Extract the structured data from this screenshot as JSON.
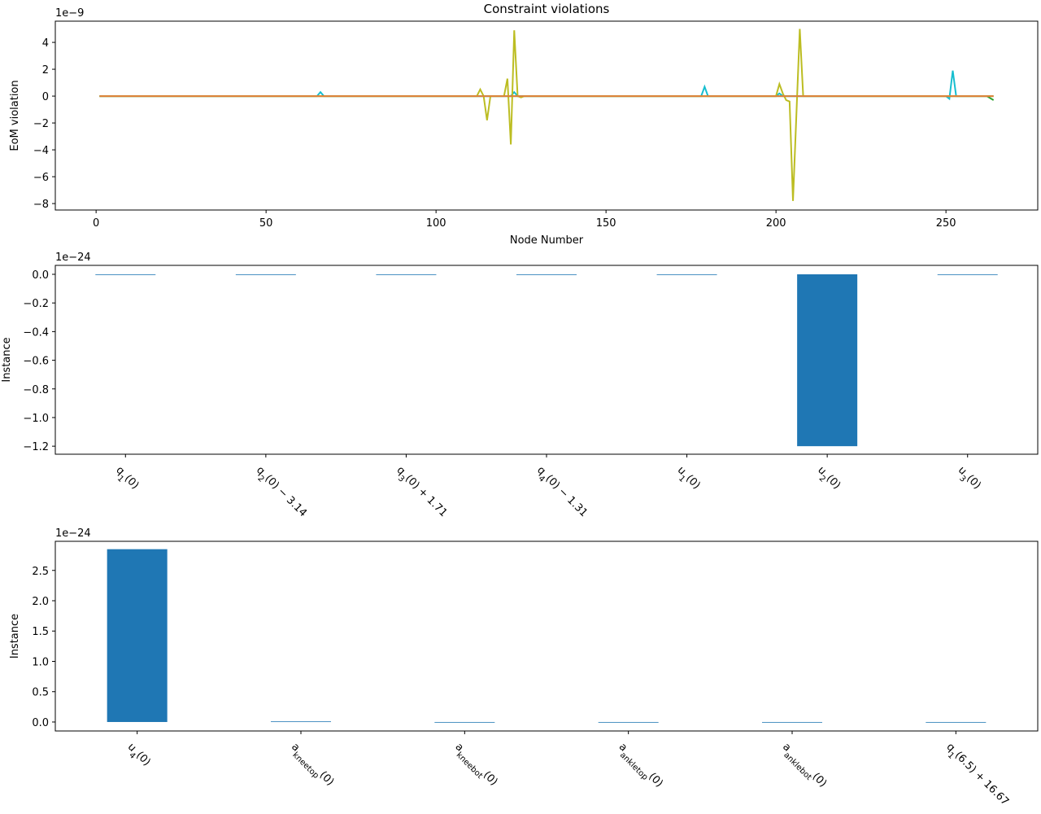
{
  "chart_data": [
    {
      "type": "line",
      "title": "Constraint violations",
      "xlabel": "Node Number",
      "ylabel": "EoM violation",
      "offset_text": "1e−9",
      "xlim": [
        -12,
        277
      ],
      "ylim": [
        -8.48,
        5.58
      ],
      "xticks": [
        0,
        50,
        100,
        150,
        200,
        250
      ],
      "yticks": [
        {
          "value": -8,
          "label": "−8"
        },
        {
          "value": -6,
          "label": "−6"
        },
        {
          "value": -4,
          "label": "−4"
        },
        {
          "value": -2,
          "label": "−2"
        },
        0,
        2,
        4
      ],
      "series": [
        {
          "color": "#2ca02c",
          "x": [
            1,
            262,
            264
          ],
          "values": [
            0,
            0,
            -0.3
          ]
        },
        {
          "color": "#17becf",
          "x": [
            1,
            65,
            66,
            67,
            122,
            123,
            124,
            178,
            179,
            180,
            200,
            201,
            202,
            250,
            251,
            252,
            253,
            264
          ],
          "values": [
            0,
            0,
            0.3,
            0,
            0,
            0.3,
            0,
            0,
            0.7,
            0,
            0,
            0.2,
            0,
            0,
            -0.2,
            1.9,
            0,
            0
          ]
        },
        {
          "color": "#bcbd22",
          "x": [
            1,
            112,
            113,
            114,
            115,
            116,
            120,
            121,
            122,
            123,
            124,
            125,
            126,
            200,
            201,
            202,
            203,
            204,
            205,
            206,
            207,
            208,
            264
          ],
          "values": [
            0,
            0,
            0.5,
            0,
            -1.8,
            0,
            0,
            1.3,
            -3.6,
            4.9,
            0,
            -0.1,
            0,
            0,
            0.9,
            0.2,
            -0.3,
            -0.4,
            -7.8,
            -1.4,
            5.0,
            0,
            0
          ]
        },
        {
          "color": "#e0803a",
          "x": [
            1,
            264
          ],
          "values": [
            0,
            0
          ]
        }
      ]
    },
    {
      "type": "bar",
      "ylabel": "Instance",
      "offset_text": "1e−24",
      "color": "#1f77b4",
      "categories": [
        "q_1(0)",
        "q_2(0) − 3.14",
        "q_3(0) + 1.71",
        "q_4(0) − 1.31",
        "u_1(0)",
        "u_2(0)",
        "u_3(0)"
      ],
      "values": [
        0,
        0,
        0,
        0,
        0,
        -1.2,
        0
      ],
      "ylim": [
        -1.256,
        0.0625
      ],
      "yticks": [
        {
          "value": 0,
          "label": "0.0"
        },
        {
          "value": -0.2,
          "label": "−0.2"
        },
        {
          "value": -0.4,
          "label": "−0.4"
        },
        {
          "value": -0.6,
          "label": "−0.6"
        },
        {
          "value": -0.8,
          "label": "−0.8"
        },
        {
          "value": -1.0,
          "label": "−1.0"
        },
        {
          "value": -1.2,
          "label": "−1.2"
        }
      ]
    },
    {
      "type": "bar",
      "ylabel": "Instance",
      "offset_text": "1e−24",
      "color": "#1f77b4",
      "categories": [
        "u_4(0)",
        "a_kneetop(0)",
        "a_kneebot(0)",
        "a_ankletop(0)",
        "a_anklebot(0)",
        "q_1(6.5) + 16.67"
      ],
      "values": [
        2.85,
        0.01,
        -0.005,
        -0.005,
        -0.005,
        0
      ],
      "ylim": [
        -0.148,
        2.98
      ],
      "yticks": [
        {
          "value": 0,
          "label": "0.0"
        },
        0.5,
        {
          "value": 1.0,
          "label": "1.0"
        },
        1.5,
        {
          "value": 2.0,
          "label": "2.0"
        },
        2.5
      ]
    }
  ]
}
